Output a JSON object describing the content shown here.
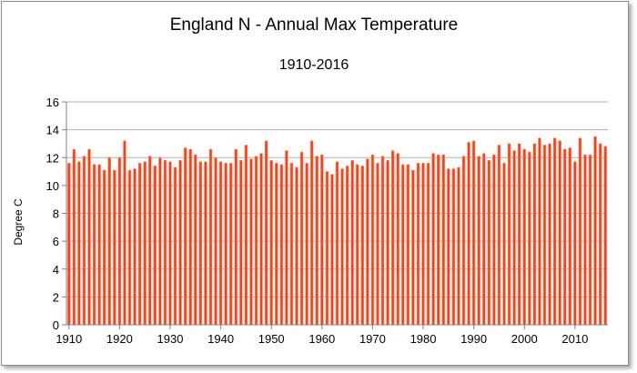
{
  "chart_data": {
    "type": "bar",
    "title": "England N - Annual Max Temperature",
    "subtitle": "1910-2016",
    "xlabel": "",
    "ylabel": "Degree C",
    "ylim": [
      0,
      16
    ],
    "yticks": [
      0,
      2,
      4,
      6,
      8,
      10,
      12,
      14,
      16
    ],
    "xticks": [
      1910,
      1920,
      1930,
      1940,
      1950,
      1960,
      1970,
      1980,
      1990,
      2000,
      2010
    ],
    "grid": true,
    "legend": "none",
    "bar_color": "#ff3c14",
    "bar_edge_color": "#ff8a66",
    "grid_color": "#b3b3b3",
    "x": [
      1910,
      1911,
      1912,
      1913,
      1914,
      1915,
      1916,
      1917,
      1918,
      1919,
      1920,
      1921,
      1922,
      1923,
      1924,
      1925,
      1926,
      1927,
      1928,
      1929,
      1930,
      1931,
      1932,
      1933,
      1934,
      1935,
      1936,
      1937,
      1938,
      1939,
      1940,
      1941,
      1942,
      1943,
      1944,
      1945,
      1946,
      1947,
      1948,
      1949,
      1950,
      1951,
      1952,
      1953,
      1954,
      1955,
      1956,
      1957,
      1958,
      1959,
      1960,
      1961,
      1962,
      1963,
      1964,
      1965,
      1966,
      1967,
      1968,
      1969,
      1970,
      1971,
      1972,
      1973,
      1974,
      1975,
      1976,
      1977,
      1978,
      1979,
      1980,
      1981,
      1982,
      1983,
      1984,
      1985,
      1986,
      1987,
      1988,
      1989,
      1990,
      1991,
      1992,
      1993,
      1994,
      1995,
      1996,
      1997,
      1998,
      1999,
      2000,
      2001,
      2002,
      2003,
      2004,
      2005,
      2006,
      2007,
      2008,
      2009,
      2010,
      2011,
      2012,
      2013,
      2014,
      2015,
      2016
    ],
    "values": [
      11.6,
      12.6,
      11.7,
      12.1,
      12.6,
      11.5,
      11.5,
      11.1,
      12.0,
      11.1,
      12.0,
      13.2,
      11.1,
      11.2,
      11.6,
      11.7,
      12.1,
      11.4,
      12.0,
      11.8,
      11.7,
      11.3,
      11.8,
      12.7,
      12.6,
      12.2,
      11.7,
      11.7,
      12.6,
      12.0,
      11.7,
      11.6,
      11.6,
      12.6,
      11.8,
      12.9,
      11.9,
      12.1,
      12.3,
      13.2,
      11.8,
      11.6,
      11.5,
      12.5,
      11.6,
      11.3,
      12.4,
      11.6,
      13.2,
      12.1,
      12.2,
      11.0,
      10.8,
      11.7,
      11.2,
      11.4,
      11.8,
      11.5,
      11.4,
      11.9,
      12.2,
      11.6,
      12.1,
      11.8,
      12.5,
      12.3,
      11.5,
      11.5,
      11.1,
      11.6,
      11.6,
      11.6,
      12.3,
      12.2,
      12.2,
      11.2,
      11.2,
      11.3,
      12.1,
      13.1,
      13.2,
      12.1,
      12.3,
      11.8,
      12.2,
      12.9,
      11.6,
      13.0,
      12.5,
      13.0,
      12.6,
      12.4,
      13.0,
      13.4,
      12.9,
      13.0,
      13.4,
      13.2,
      12.6,
      12.7,
      11.7,
      13.4,
      12.2,
      12.2,
      13.5,
      13.0,
      12.8
    ]
  }
}
